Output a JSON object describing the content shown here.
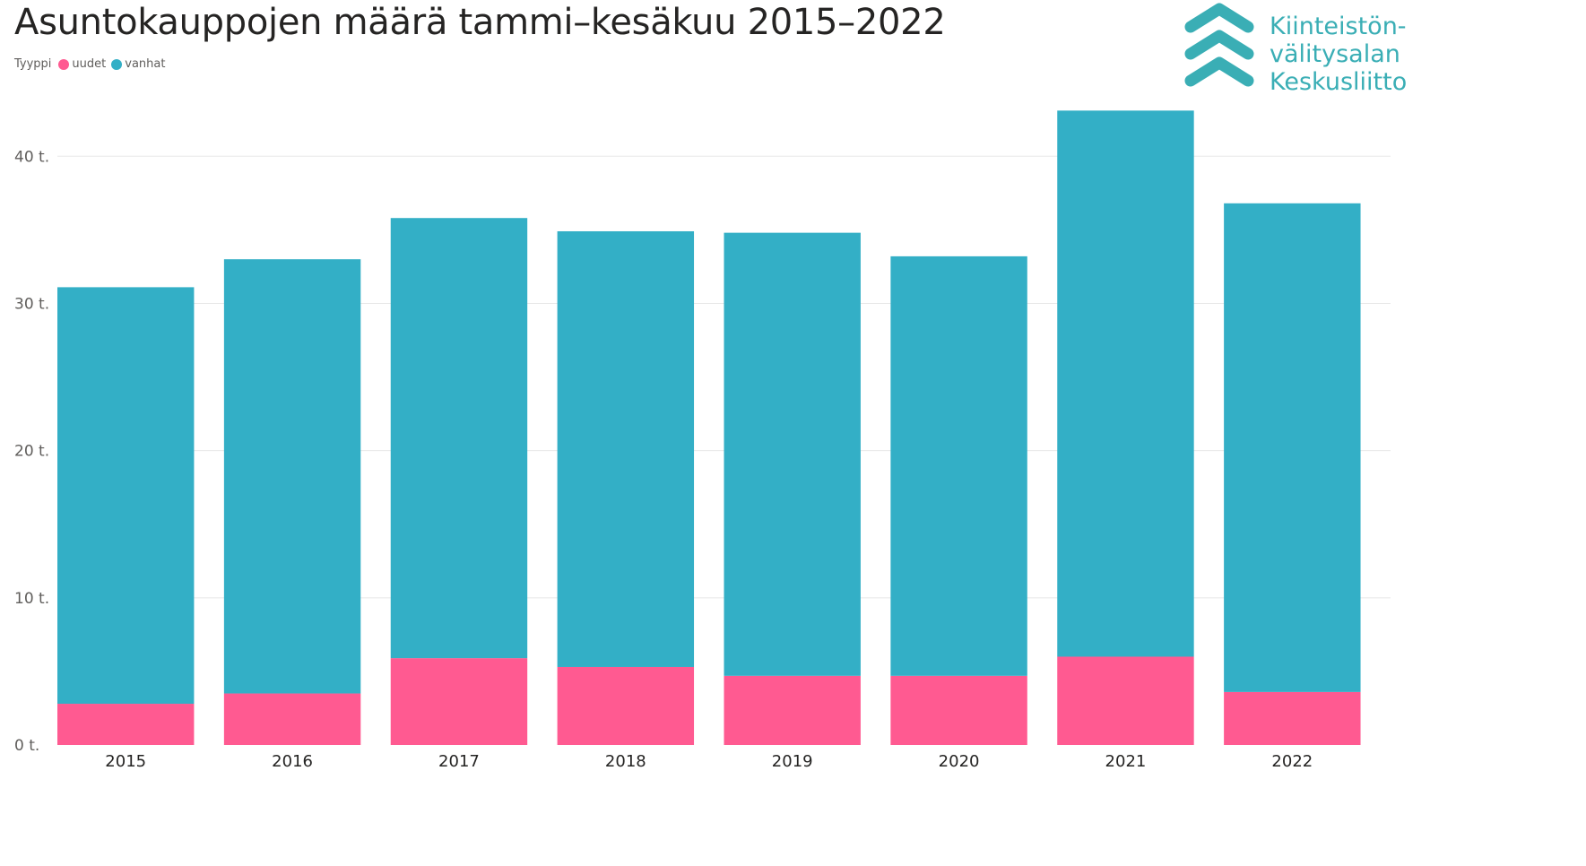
{
  "chart_data": {
    "type": "bar",
    "stacked": true,
    "title": "Asuntokauppojen määrä tammi–kesäkuu 2015–2022",
    "xlabel": "",
    "ylabel": "",
    "legend_title": "Tyyppi",
    "legend_placement": "top-left",
    "grid": true,
    "categories": [
      "2015",
      "2016",
      "2017",
      "2018",
      "2019",
      "2020",
      "2021",
      "2022"
    ],
    "series": [
      {
        "name": "uudet",
        "color": "#ff5a91",
        "values": [
          2800,
          3500,
          5900,
          5300,
          4700,
          4700,
          6000,
          3600
        ]
      },
      {
        "name": "vanhat",
        "color": "#33afc6",
        "values": [
          28300,
          29500,
          29900,
          29600,
          30100,
          28500,
          37100,
          33200
        ]
      }
    ],
    "ylim": [
      0,
      43000
    ],
    "yticks": [
      0,
      10000,
      20000,
      30000,
      40000
    ],
    "ytick_labels": [
      "0 t.",
      "10 t.",
      "20 t.",
      "30 t.",
      "40 t."
    ]
  },
  "logo": {
    "lines": [
      "Kiinteistön-",
      "välitysalan",
      "Keskusliitto"
    ],
    "color": "#3aaeb5"
  }
}
